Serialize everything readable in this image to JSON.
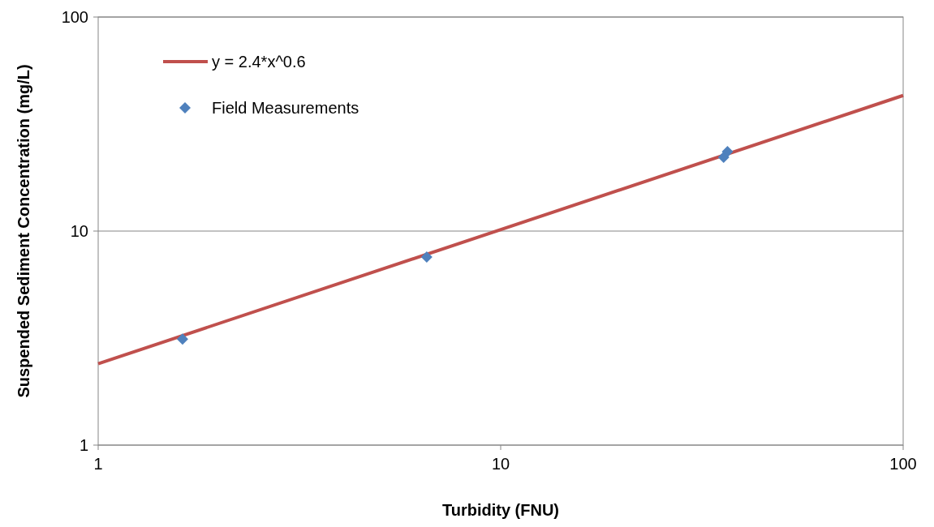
{
  "chart_data": {
    "type": "scatter",
    "xlabel": "Turbidity (FNU)",
    "ylabel": "Suspended Sediment Concentration (mg/L)",
    "log": "xy",
    "xlim": [
      1,
      100
    ],
    "ylim": [
      1,
      100
    ],
    "xticks": [
      1,
      10,
      100
    ],
    "yticks": [
      1,
      10,
      100
    ],
    "grid": "y",
    "legend": "top left",
    "series": [
      {
        "name": "y = 2.4*x^0.6",
        "type": "line",
        "color": "#c0504d",
        "x": [
          1,
          100
        ],
        "values": [
          2.4,
          43
        ],
        "marker": "none",
        "line_style": "solid"
      },
      {
        "name": "Field Measurements",
        "color": "#4f81bd",
        "x": [
          1.62,
          6.55,
          35.8,
          36.6
        ],
        "values": [
          3.13,
          7.57,
          22.1,
          23.5
        ],
        "marker": "diamond"
      }
    ]
  }
}
